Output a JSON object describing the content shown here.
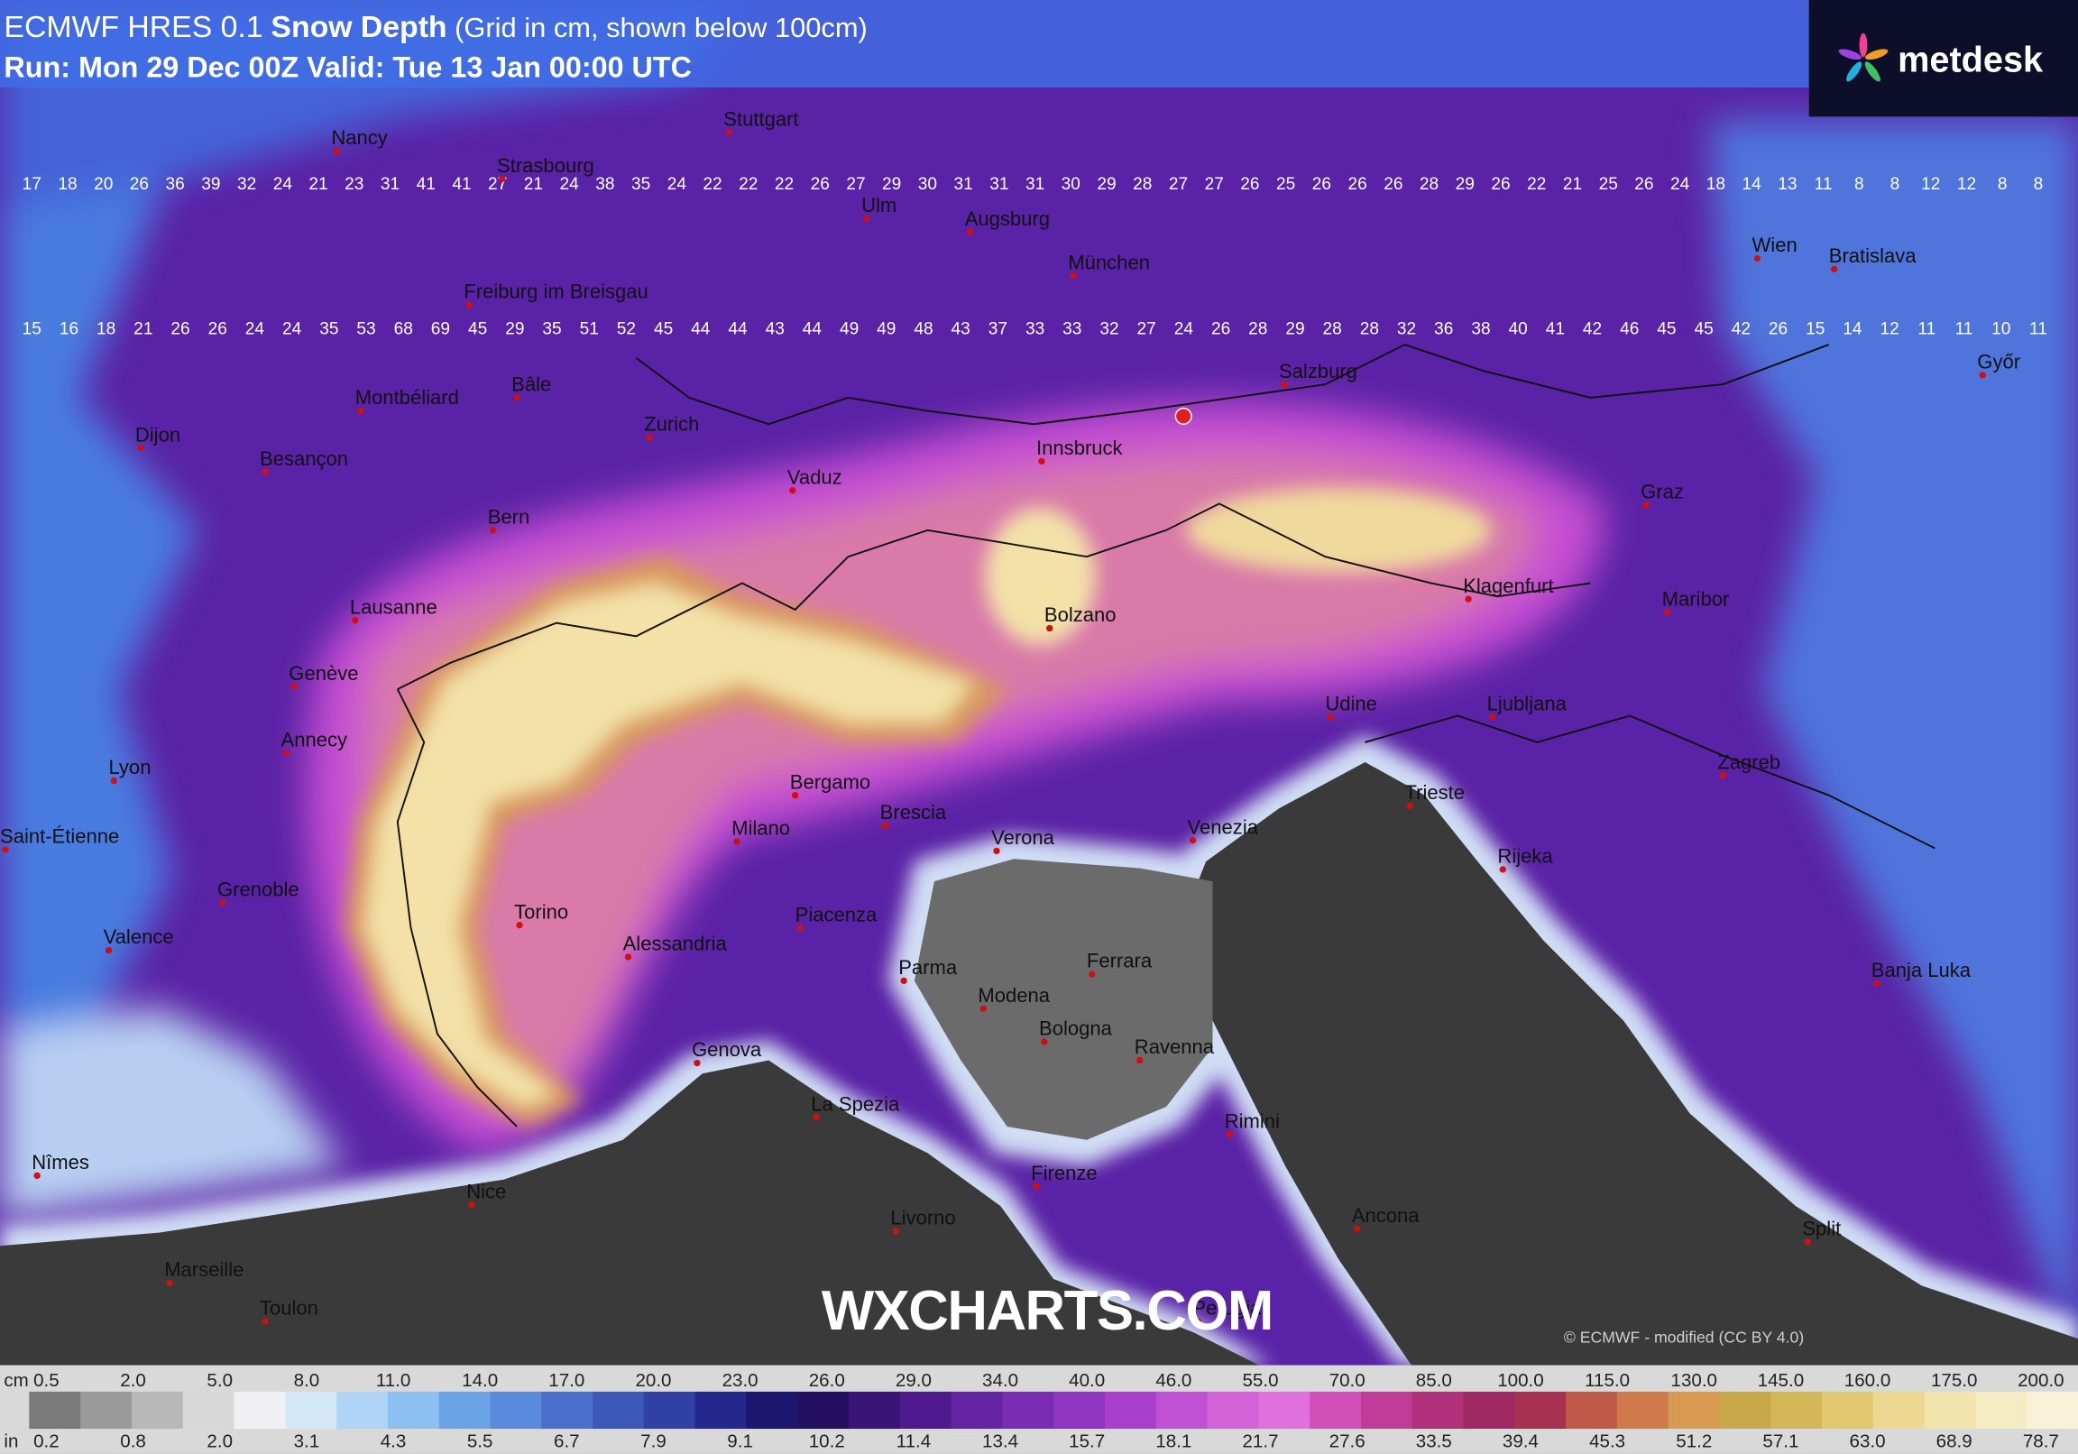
{
  "header": {
    "model": "ECMWF HRES 0.1",
    "title": "Snow Depth",
    "note": " (Grid in cm, shown below 100cm)",
    "run": "Run: Mon 29 Dec 00Z Valid: Tue 13 Jan 00:00 UTC"
  },
  "logo": "metdesk",
  "watermark": "WXCHARTS.COM",
  "copyright": "© ECMWF - modified (CC BY 4.0)",
  "cities": [
    "Nancy",
    "Strasbourg",
    "Stuttgart",
    "Ulm",
    "Augsburg",
    "München",
    "Wien",
    "Bratislava",
    "Freiburg im Breisgau",
    "Salzburg",
    "Győr",
    "Montbéliard",
    "Bâle",
    "Zurich",
    "Dijon",
    "Besançon",
    "Vaduz",
    "Innsbruck",
    "Graz",
    "Bern",
    "Klagenfurt",
    "Maribor",
    "Lausanne",
    "Bolzano",
    "Genève",
    "Ljubljana",
    "Udine",
    "Annecy",
    "Lyon",
    "Zagreb",
    "Bergamo",
    "Trieste",
    "Brescia",
    "Saint-Étienne",
    "Milano",
    "Verona",
    "Venezia",
    "Rijeka",
    "Grenoble",
    "Torino",
    "Piacenza",
    "Valence",
    "Alessandria",
    "Parma",
    "Ferrara",
    "Banja Luka",
    "Modena",
    "Bologna",
    "Ravenna",
    "Genova",
    "La Spezia",
    "Rimini",
    "Nîmes",
    "Firenze",
    "Nice",
    "Livorno",
    "Ancona",
    "Split",
    "Marseille",
    "Toulon",
    "Perugia"
  ],
  "grid_rows": [
    [
      17,
      18,
      20,
      26,
      36,
      39,
      32,
      24,
      21,
      23,
      31,
      41,
      41,
      27,
      21,
      24,
      38,
      35,
      24,
      22,
      22,
      22,
      26,
      27,
      29,
      30,
      31,
      31,
      31,
      30,
      29,
      28,
      27,
      27,
      26,
      25,
      26,
      26,
      26,
      28,
      29,
      26,
      22,
      21,
      25,
      26,
      24,
      18,
      14,
      13,
      11,
      8,
      8,
      12,
      12,
      8,
      8
    ],
    [
      15,
      16,
      18,
      21,
      26,
      26,
      24,
      24,
      35,
      53,
      68,
      69,
      45,
      29,
      35,
      51,
      52,
      45,
      44,
      44,
      43,
      44,
      49,
      49,
      48,
      43,
      37,
      33,
      33,
      32,
      27,
      24,
      26,
      28,
      29,
      28,
      28,
      32,
      36,
      38,
      40,
      41,
      42,
      46,
      45,
      45,
      42,
      26,
      15,
      14,
      12,
      11,
      11,
      10,
      11
    ]
  ],
  "legend": {
    "cm_unit": "cm",
    "cm_labels": [
      "0.5",
      "2.0",
      "5.0",
      "8.0",
      "11.0",
      "14.0",
      "17.0",
      "20.0",
      "23.0",
      "26.0",
      "29.0",
      "34.0",
      "40.0",
      "46.0",
      "55.0",
      "70.0",
      "85.0",
      "100.0",
      "115.0",
      "130.0",
      "145.0",
      "160.0",
      "175.0",
      "200.0"
    ],
    "in_unit": "in",
    "in_labels": [
      "0.2",
      "0.8",
      "2.0",
      "3.1",
      "4.3",
      "5.5",
      "6.7",
      "7.9",
      "9.1",
      "10.2",
      "11.4",
      "13.4",
      "15.7",
      "18.1",
      "21.7",
      "27.6",
      "33.5",
      "39.4",
      "45.3",
      "51.2",
      "57.1",
      "63.0",
      "68.9",
      "78.7"
    ]
  }
}
